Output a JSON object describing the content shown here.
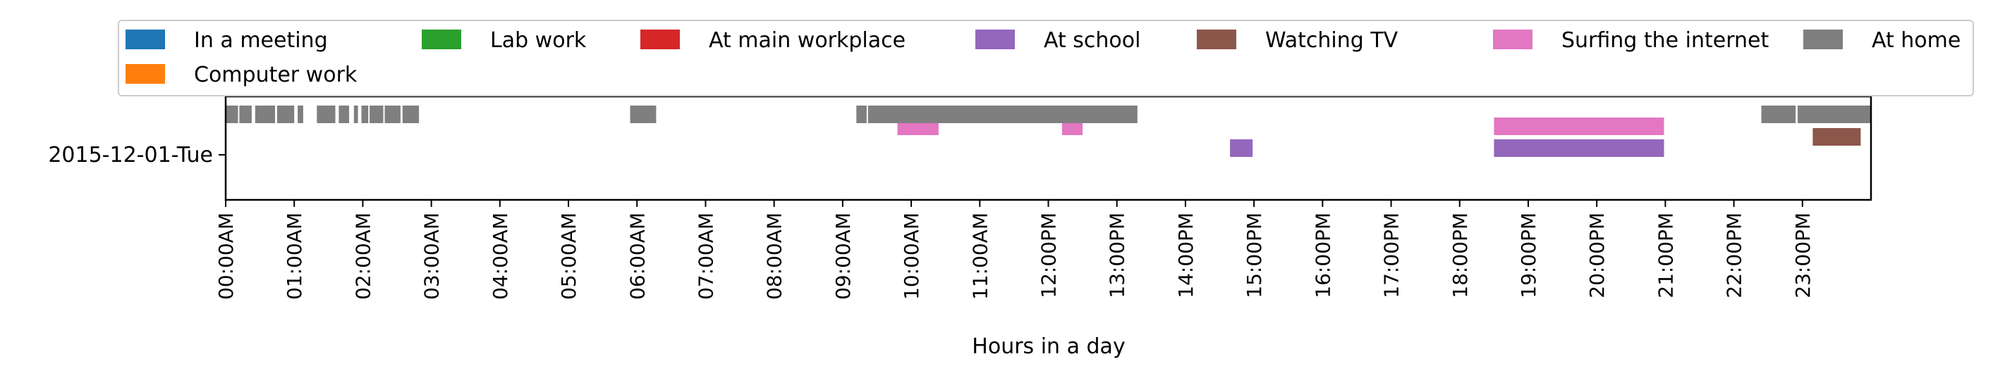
{
  "chart_data": {
    "type": "timeline",
    "xlabel": "Hours in a day",
    "ylabel": "",
    "xlim": [
      0,
      24
    ],
    "categories": [
      "2015-12-01-Tue"
    ],
    "x_ticks": [
      "00:00AM",
      "01:00AM",
      "02:00AM",
      "03:00AM",
      "04:00AM",
      "05:00AM",
      "06:00AM",
      "07:00AM",
      "08:00AM",
      "09:00AM",
      "10:00AM",
      "11:00AM",
      "12:00PM",
      "13:00PM",
      "14:00PM",
      "15:00PM",
      "16:00PM",
      "17:00PM",
      "18:00PM",
      "19:00PM",
      "20:00PM",
      "21:00PM",
      "22:00PM",
      "23:00PM"
    ],
    "legend_position": "top",
    "series": [
      {
        "name": "In a meeting",
        "color": "#1f77b4",
        "intervals": []
      },
      {
        "name": "Computer work",
        "color": "#ff7f0e",
        "intervals": []
      },
      {
        "name": "Lab work",
        "color": "#2ca02c",
        "intervals": []
      },
      {
        "name": "At main workplace",
        "color": "#d62728",
        "intervals": []
      },
      {
        "name": "At school",
        "color": "#9467bd",
        "intervals": [
          [
            14.65,
            14.98
          ],
          [
            18.5,
            20.98
          ]
        ]
      },
      {
        "name": "Watching TV",
        "color": "#8c564b",
        "intervals": [
          [
            23.15,
            23.85
          ]
        ]
      },
      {
        "name": "Surfing the internet",
        "color": "#e377c2",
        "intervals": [
          [
            9.8,
            10.4
          ],
          [
            12.2,
            12.5
          ],
          [
            18.5,
            20.98
          ]
        ]
      },
      {
        "name": "At home",
        "color": "#7f7f7f",
        "intervals": [
          [
            0.0,
            0.18
          ],
          [
            0.2,
            0.38
          ],
          [
            0.43,
            0.72
          ],
          [
            0.75,
            1.0
          ],
          [
            1.05,
            1.13
          ],
          [
            1.33,
            1.6
          ],
          [
            1.65,
            1.8
          ],
          [
            1.87,
            1.93
          ],
          [
            1.98,
            2.08
          ],
          [
            2.1,
            2.3
          ],
          [
            2.32,
            2.55
          ],
          [
            2.58,
            2.82
          ],
          [
            5.9,
            6.28
          ],
          [
            9.2,
            9.35
          ],
          [
            9.37,
            13.3
          ],
          [
            22.4,
            22.9
          ],
          [
            22.93,
            24.0
          ]
        ]
      }
    ],
    "legend_order": [
      "In a meeting",
      "Lab work",
      "At main workplace",
      "At school",
      "Watching TV",
      "Surfing the internet",
      "At home",
      "Computer work"
    ]
  }
}
